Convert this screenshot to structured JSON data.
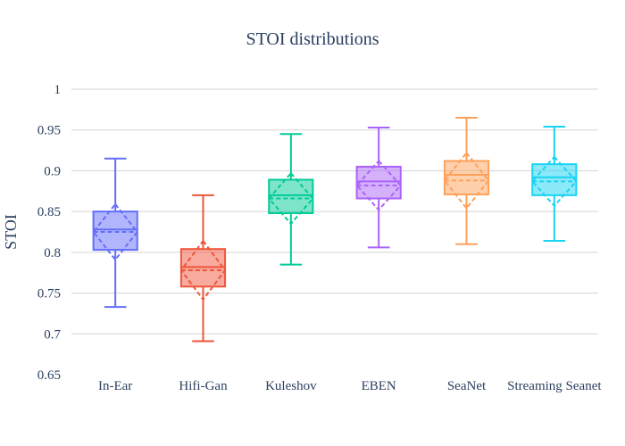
{
  "chart_data": {
    "type": "box",
    "title": "STOI distributions",
    "ylabel": "STOI",
    "xlabel": "",
    "ylim": [
      0.65,
      1.0
    ],
    "yticks": [
      {
        "value": 0.65,
        "label": "0.65"
      },
      {
        "value": 0.7,
        "label": "0.7"
      },
      {
        "value": 0.75,
        "label": "0.75"
      },
      {
        "value": 0.8,
        "label": "0.8"
      },
      {
        "value": 0.85,
        "label": "0.85"
      },
      {
        "value": 0.9,
        "label": "0.9"
      },
      {
        "value": 0.95,
        "label": "0.95"
      },
      {
        "value": 1.0,
        "label": "1"
      }
    ],
    "grid": true,
    "legend": "none",
    "categories": [
      "In-Ear",
      "Hifi-Gan",
      "Kuleshov",
      "EBEN",
      "SeaNet",
      "Streaming Seanet"
    ],
    "series": [
      {
        "category": "In-Ear",
        "color": "#636efa",
        "min": 0.733,
        "q1": 0.803,
        "median": 0.828,
        "q3": 0.85,
        "max": 0.915,
        "mean": 0.825,
        "sd": 0.034
      },
      {
        "category": "Hifi-Gan",
        "color": "#ef553b",
        "min": 0.691,
        "q1": 0.758,
        "median": 0.782,
        "q3": 0.804,
        "max": 0.87,
        "mean": 0.778,
        "sd": 0.036
      },
      {
        "category": "Kuleshov",
        "color": "#00cc96",
        "min": 0.785,
        "q1": 0.848,
        "median": 0.87,
        "q3": 0.889,
        "max": 0.945,
        "mean": 0.866,
        "sd": 0.031
      },
      {
        "category": "EBEN",
        "color": "#ab63fa",
        "min": 0.806,
        "q1": 0.866,
        "median": 0.887,
        "q3": 0.905,
        "max": 0.953,
        "mean": 0.882,
        "sd": 0.03
      },
      {
        "category": "SeaNet",
        "color": "#ffa15a",
        "min": 0.81,
        "q1": 0.871,
        "median": 0.895,
        "q3": 0.912,
        "max": 0.965,
        "mean": 0.888,
        "sd": 0.034
      },
      {
        "category": "Streaming Seanet",
        "color": "#19d3f3",
        "min": 0.814,
        "q1": 0.87,
        "median": 0.892,
        "q3": 0.908,
        "max": 0.954,
        "mean": 0.887,
        "sd": 0.03
      }
    ]
  }
}
